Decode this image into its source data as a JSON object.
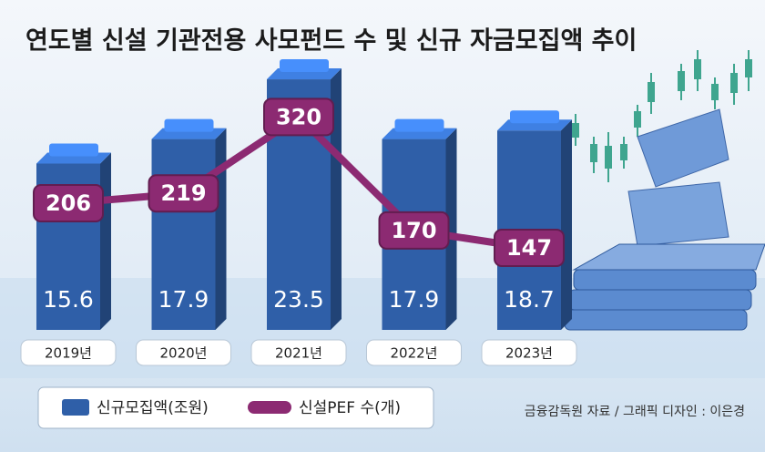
{
  "chart_data": {
    "type": "combo",
    "title": "연도별 신설 기관전용 사모펀드 수 및 신규 자금모집액 추이",
    "categories": [
      "2019년",
      "2020년",
      "2021년",
      "2022년",
      "2023년"
    ],
    "series": [
      {
        "name": "신규모집액(조원)",
        "type": "bar",
        "color": "#2f5fa8",
        "values": [
          15.6,
          17.9,
          23.5,
          17.9,
          18.7
        ]
      },
      {
        "name": "신설PEF 수(개)",
        "type": "line",
        "axis": "y2",
        "color": "#8c2a72",
        "values": [
          206,
          219,
          320,
          170,
          147
        ]
      }
    ],
    "source": "금융감독원 자료 / 그래픽 디자인 : 이은경"
  }
}
